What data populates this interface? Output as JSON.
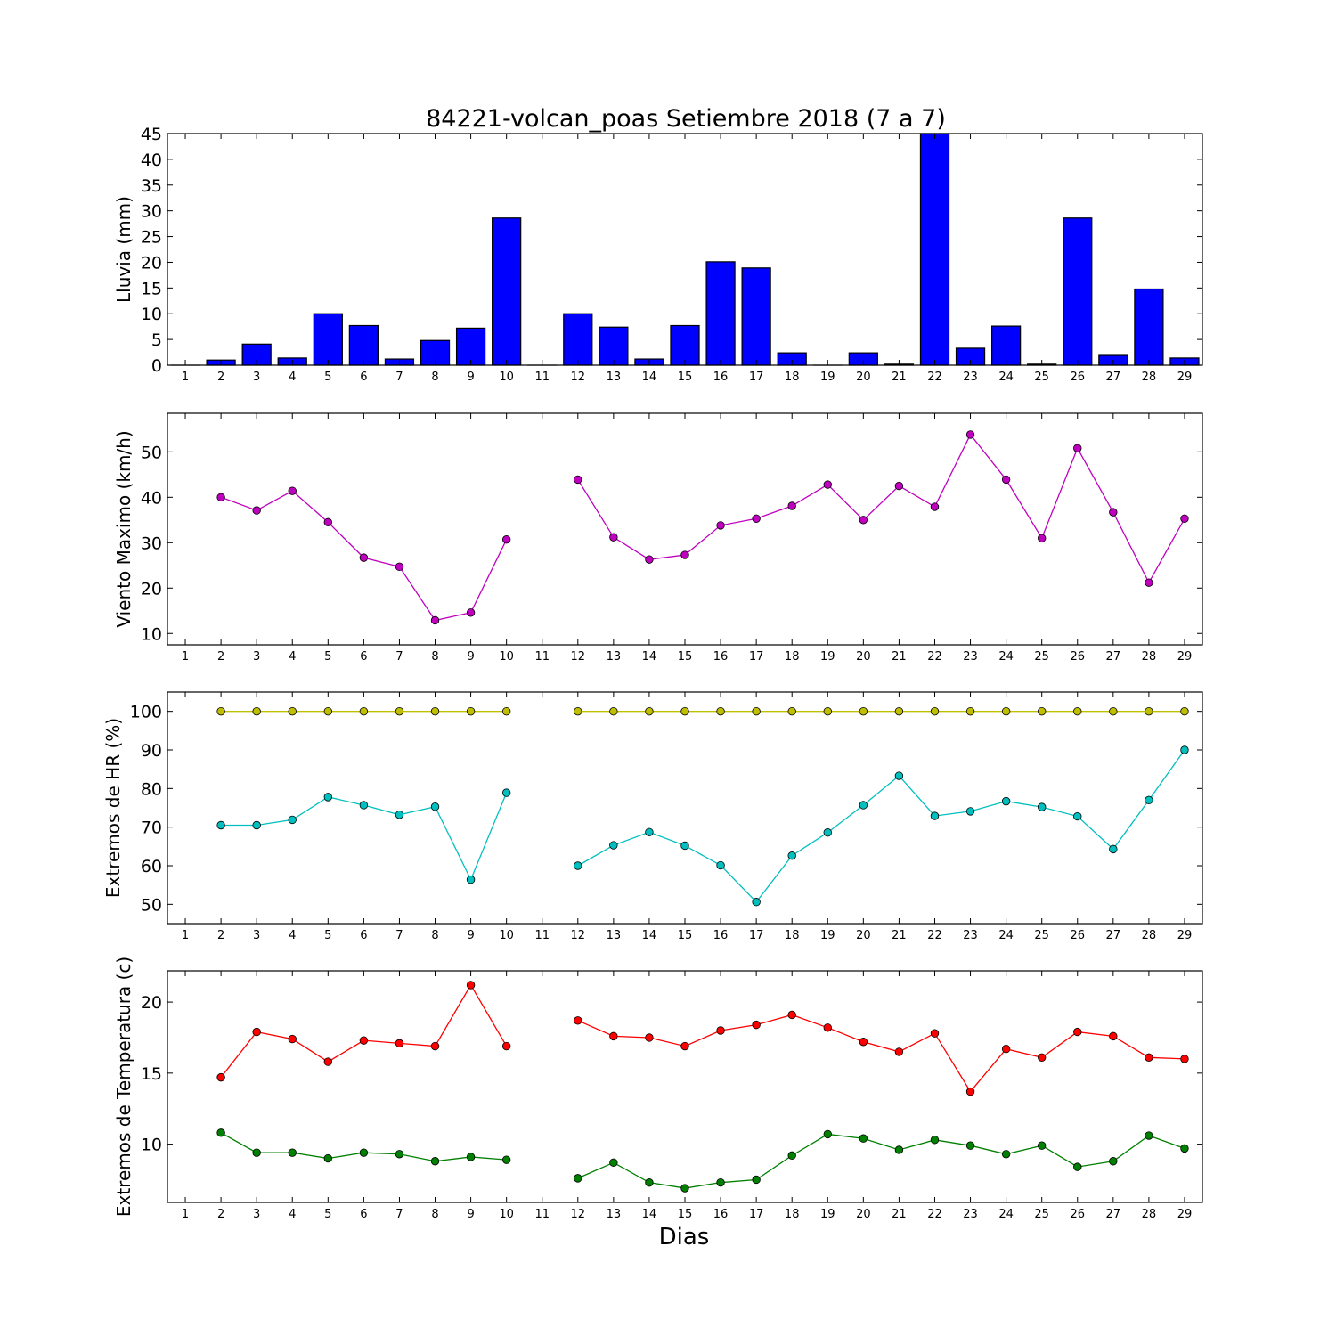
{
  "chart_data": [
    {
      "type": "bar",
      "title": "84221-volcan_poas Setiembre 2018  (7 a 7)",
      "ylabel": "Lluvia (mm)",
      "xlabel": "",
      "x": [
        1,
        2,
        3,
        4,
        5,
        6,
        7,
        8,
        9,
        10,
        11,
        12,
        13,
        14,
        15,
        16,
        17,
        18,
        19,
        20,
        21,
        22,
        23,
        24,
        25,
        26,
        27,
        28,
        29
      ],
      "ylim": [
        0,
        45
      ],
      "yticks": [
        0,
        5,
        10,
        15,
        20,
        25,
        30,
        35,
        40,
        45
      ],
      "grid": false,
      "color": "#0000ff",
      "series": [
        {
          "values": [
            0,
            1.0,
            4.1,
            1.4,
            10.0,
            7.7,
            1.2,
            4.8,
            7.2,
            28.6,
            0,
            10.0,
            7.4,
            1.2,
            7.7,
            20.1,
            18.9,
            2.4,
            0,
            2.4,
            0.2,
            45,
            3.3,
            7.6,
            0.2,
            28.6,
            1.9,
            14.8,
            1.4
          ]
        }
      ]
    },
    {
      "type": "line",
      "ylabel": "Viento Maximo (km/h)",
      "xlabel": "",
      "x": [
        1,
        2,
        3,
        4,
        5,
        6,
        7,
        8,
        9,
        10,
        11,
        12,
        13,
        14,
        15,
        16,
        17,
        18,
        19,
        20,
        21,
        22,
        23,
        24,
        25,
        26,
        27,
        28,
        29
      ],
      "ylim": [
        7.5,
        58.5
      ],
      "yticks": [
        10,
        20,
        30,
        40,
        50
      ],
      "grid": false,
      "series": [
        {
          "color": "#bf00bf",
          "values": [
            null,
            40.0,
            37.1,
            41.4,
            34.5,
            26.7,
            24.7,
            12.9,
            14.6,
            30.7,
            null,
            43.9,
            31.2,
            26.3,
            27.3,
            33.8,
            35.3,
            38.1,
            42.8,
            35.0,
            42.5,
            37.9,
            53.8,
            43.9,
            31.0,
            50.8,
            36.7,
            21.2,
            35.3
          ]
        }
      ]
    },
    {
      "type": "line",
      "ylabel": "Extremos de HR (%)",
      "xlabel": "",
      "x": [
        1,
        2,
        3,
        4,
        5,
        6,
        7,
        8,
        9,
        10,
        11,
        12,
        13,
        14,
        15,
        16,
        17,
        18,
        19,
        20,
        21,
        22,
        23,
        24,
        25,
        26,
        27,
        28,
        29
      ],
      "ylim": [
        45,
        105
      ],
      "yticks": [
        50,
        60,
        70,
        80,
        90,
        100
      ],
      "grid": false,
      "series": [
        {
          "color": "#bfbf00",
          "values": [
            null,
            100,
            100,
            100,
            100,
            100,
            100,
            100,
            100,
            100,
            null,
            100,
            100,
            100,
            100,
            100,
            100,
            100,
            100,
            100,
            100,
            100,
            100,
            100,
            100,
            100,
            100,
            100,
            100
          ]
        },
        {
          "color": "#00bfbf",
          "values": [
            null,
            70.5,
            70.5,
            71.9,
            77.8,
            75.7,
            73.2,
            75.3,
            56.4,
            78.9,
            null,
            60.0,
            65.3,
            68.7,
            65.2,
            60.1,
            50.6,
            62.6,
            68.6,
            75.7,
            83.3,
            72.9,
            74.1,
            76.7,
            75.2,
            72.8,
            64.3,
            77.0,
            90.0
          ]
        }
      ]
    },
    {
      "type": "line",
      "ylabel": "Extremos de Temperatura (c)",
      "xlabel": "Dias",
      "x": [
        1,
        2,
        3,
        4,
        5,
        6,
        7,
        8,
        9,
        10,
        11,
        12,
        13,
        14,
        15,
        16,
        17,
        18,
        19,
        20,
        21,
        22,
        23,
        24,
        25,
        26,
        27,
        28,
        29
      ],
      "ylim": [
        5.9,
        22.2
      ],
      "yticks": [
        10,
        15,
        20
      ],
      "grid": false,
      "series": [
        {
          "color": "#ff0000",
          "values": [
            null,
            14.7,
            17.9,
            17.4,
            15.8,
            17.3,
            17.1,
            16.9,
            21.2,
            16.9,
            null,
            18.7,
            17.6,
            17.5,
            16.9,
            18.0,
            18.4,
            19.1,
            18.2,
            17.2,
            16.5,
            17.8,
            13.7,
            16.7,
            16.1,
            17.9,
            17.6,
            16.1,
            16.0
          ]
        },
        {
          "color": "#008000",
          "values": [
            null,
            10.8,
            9.4,
            9.4,
            9.0,
            9.4,
            9.3,
            8.8,
            9.1,
            8.9,
            null,
            7.6,
            8.7,
            7.3,
            6.9,
            7.3,
            7.5,
            9.2,
            10.7,
            10.4,
            9.6,
            10.3,
            9.9,
            9.3,
            9.9,
            8.4,
            8.8,
            10.6,
            9.7
          ]
        }
      ]
    }
  ]
}
